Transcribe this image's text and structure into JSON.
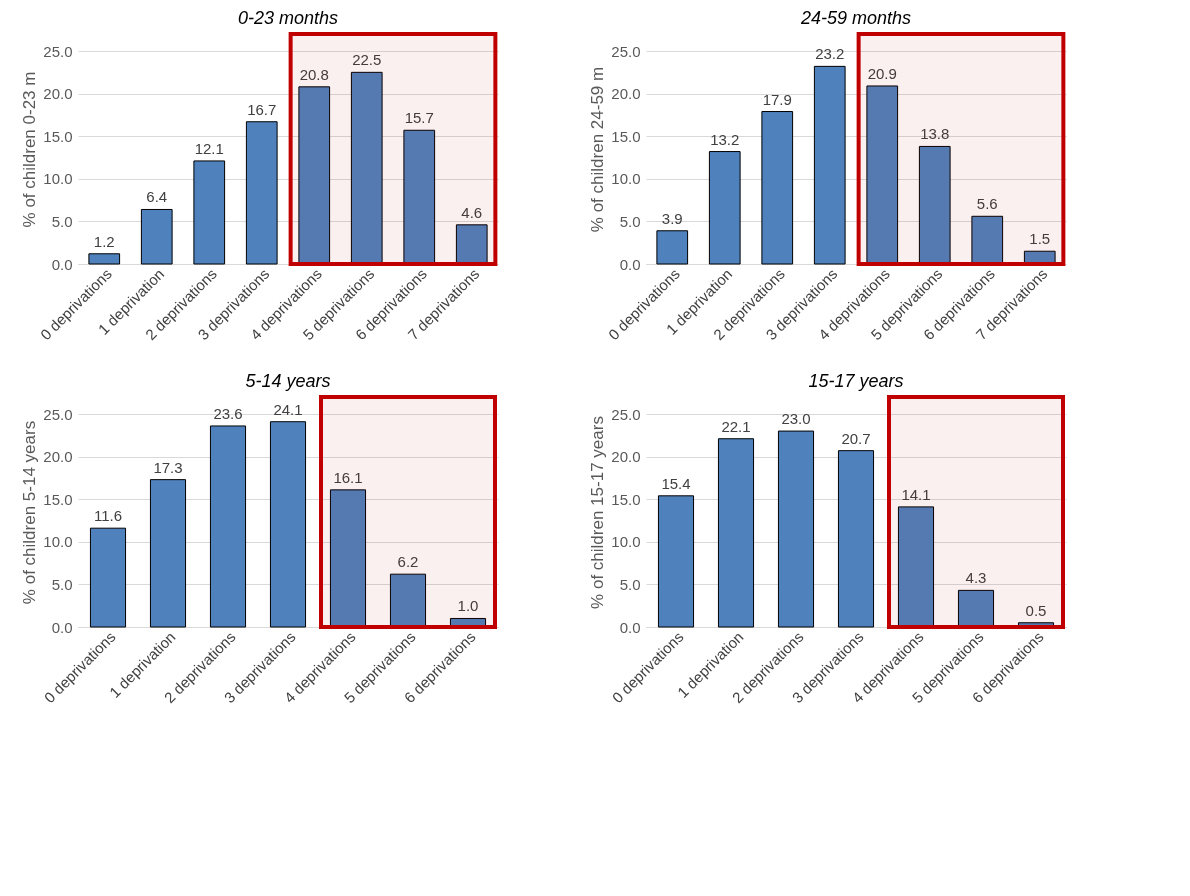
{
  "chart_data": [
    {
      "type": "bar",
      "title": "0-23 months",
      "ylabel": "% of children  0-23 m",
      "categories": [
        "0 deprivations",
        "1 deprivation",
        "2 deprivations",
        "3 deprivations",
        "4 deprivations",
        "5 deprivations",
        "6 deprivations",
        "7 deprivations"
      ],
      "values": [
        1.2,
        6.4,
        12.1,
        16.7,
        20.8,
        22.5,
        15.7,
        4.6
      ],
      "value_labels": [
        "1.2",
        "6.4",
        "12.1",
        "16.7",
        "20.8",
        "22.5",
        "15.7",
        "4.6"
      ],
      "color": "#4f81bd",
      "ylim": [
        0,
        27
      ],
      "yticks": [
        {
          "value": 0,
          "label": "0.0"
        },
        {
          "value": 5,
          "label": "5.0"
        },
        {
          "value": 10,
          "label": "10.0"
        },
        {
          "value": 15,
          "label": "15.0"
        },
        {
          "value": 20,
          "label": "20.0"
        },
        {
          "value": 25,
          "label": "25.0"
        }
      ],
      "grid": "y",
      "bands": [
        {
          "axis": "x",
          "from": "4 deprivations",
          "to": "7 deprivations",
          "color": "#c00000"
        }
      ]
    },
    {
      "type": "bar",
      "title": "24-59 months",
      "ylabel": "% of children  24-59 m",
      "categories": [
        "0 deprivations",
        "1 deprivation",
        "2 deprivations",
        "3 deprivations",
        "4 deprivations",
        "5 deprivations",
        "6 deprivations",
        "7 deprivations"
      ],
      "values": [
        3.9,
        13.2,
        17.9,
        23.2,
        20.9,
        13.8,
        5.6,
        1.5
      ],
      "value_labels": [
        "3.9",
        "13.2",
        "17.9",
        "23.2",
        "20.9",
        "13.8",
        "5.6",
        "1.5"
      ],
      "color": "#4f81bd",
      "ylim": [
        0,
        27
      ],
      "yticks": [
        {
          "value": 0,
          "label": "0.0"
        },
        {
          "value": 5,
          "label": "5.0"
        },
        {
          "value": 10,
          "label": "10.0"
        },
        {
          "value": 15,
          "label": "15.0"
        },
        {
          "value": 20,
          "label": "20.0"
        },
        {
          "value": 25,
          "label": "25.0"
        }
      ],
      "grid": "y",
      "bands": [
        {
          "axis": "x",
          "from": "4 deprivations",
          "to": "7 deprivations",
          "color": "#c00000"
        }
      ]
    },
    {
      "type": "bar",
      "title": "5-14 years",
      "ylabel": "% of children  5-14 years",
      "categories": [
        "0 deprivations",
        "1 deprivation",
        "2 deprivations",
        "3 deprivations",
        "4 deprivations",
        "5 deprivations",
        "6 deprivations"
      ],
      "values": [
        11.6,
        17.3,
        23.6,
        24.1,
        16.1,
        6.2,
        1.0
      ],
      "value_labels": [
        "11.6",
        "17.3",
        "23.6",
        "24.1",
        "16.1",
        "6.2",
        "1.0"
      ],
      "color": "#4f81bd",
      "ylim": [
        0,
        27
      ],
      "yticks": [
        {
          "value": 0,
          "label": "0.0"
        },
        {
          "value": 5,
          "label": "5.0"
        },
        {
          "value": 10,
          "label": "10.0"
        },
        {
          "value": 15,
          "label": "15.0"
        },
        {
          "value": 20,
          "label": "20.0"
        },
        {
          "value": 25,
          "label": "25.0"
        }
      ],
      "grid": "y",
      "bands": [
        {
          "axis": "x",
          "from": "4 deprivations",
          "to": "6 deprivations",
          "color": "#c00000"
        }
      ]
    },
    {
      "type": "bar",
      "title": "15-17 years",
      "ylabel": "% of children 15-17 years",
      "categories": [
        "0 deprivations",
        "1 deprivation",
        "2 deprivations",
        "3 deprivations",
        "4 deprivations",
        "5 deprivations",
        "6 deprivations"
      ],
      "values": [
        15.4,
        22.1,
        23.0,
        20.7,
        14.1,
        4.3,
        0.5
      ],
      "value_labels": [
        "15.4",
        "22.1",
        "23.0",
        "20.7",
        "14.1",
        "4.3",
        "0.5"
      ],
      "color": "#4f81bd",
      "ylim": [
        0,
        27
      ],
      "yticks": [
        {
          "value": 0,
          "label": "0.0"
        },
        {
          "value": 5,
          "label": "5.0"
        },
        {
          "value": 10,
          "label": "10.0"
        },
        {
          "value": 15,
          "label": "15.0"
        },
        {
          "value": 20,
          "label": "20.0"
        },
        {
          "value": 25,
          "label": "25.0"
        }
      ],
      "grid": "y",
      "bands": [
        {
          "axis": "x",
          "from": "4 deprivations",
          "to": "6 deprivations",
          "color": "#c00000"
        }
      ]
    }
  ]
}
